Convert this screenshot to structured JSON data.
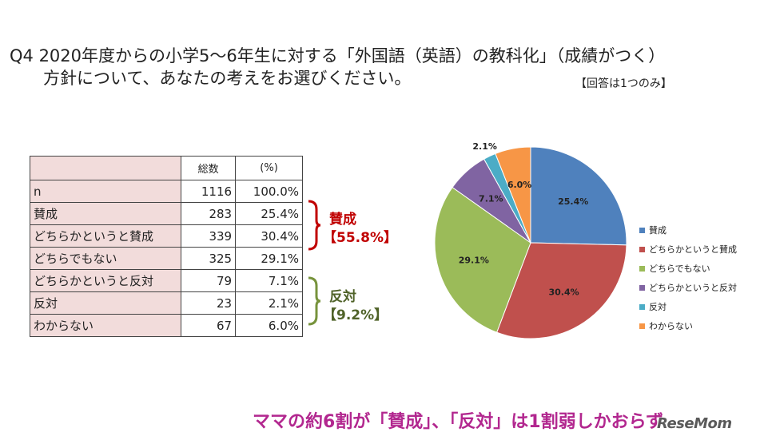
{
  "title_line1": "Q4 2020年度からの小学5～6年生に対する「外国語（英語）の教科化」（成績がつく）",
  "title_line2": "方針について、あなたの考えをお選びください。",
  "note": "【回答は1つのみ】",
  "table": {
    "headers": [
      "",
      "総数",
      "(%)"
    ],
    "rows": [
      {
        "label": "n",
        "count": "1116",
        "pct": "100.0%"
      },
      {
        "label": "賛成",
        "count": "283",
        "pct": "25.4%"
      },
      {
        "label": "どちらかというと賛成",
        "count": "339",
        "pct": "30.4%"
      },
      {
        "label": "どちらでもない",
        "count": "325",
        "pct": "29.1%"
      },
      {
        "label": "どちらかというと反対",
        "count": "79",
        "pct": "7.1%"
      },
      {
        "label": "反対",
        "count": "23",
        "pct": "2.1%"
      },
      {
        "label": "わからない",
        "count": "67",
        "pct": "6.0%"
      }
    ]
  },
  "groups": {
    "agree_label": "賛成",
    "agree_value": "【55.8%】",
    "agree_color": "#c00000",
    "oppose_label": "反対",
    "oppose_value": "【9.2%】",
    "oppose_color": "#4f6228"
  },
  "chart_data": {
    "type": "pie",
    "categories": [
      "賛成",
      "どちらかというと賛成",
      "どちらでもない",
      "どちらかというと反対",
      "反対",
      "わからない"
    ],
    "values": [
      25.4,
      30.4,
      29.1,
      7.1,
      2.1,
      6.0
    ],
    "labels": [
      "25.4%",
      "30.4%",
      "29.1%",
      "7.1%",
      "2.1%",
      "6.0%"
    ],
    "colors": [
      "#4f81bd",
      "#c0504d",
      "#9bbb59",
      "#8064a2",
      "#4bacc6",
      "#f79646"
    ],
    "legend": "right"
  },
  "bottom_text": "ママの約6割が「賛成」、「反対」は1割弱しかおらず",
  "logo_text": "ReseMom"
}
